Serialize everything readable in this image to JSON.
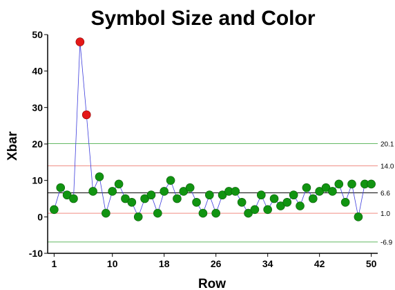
{
  "chart_data": {
    "type": "scatter",
    "title": "Symbol Size and Color",
    "xlabel": "Row",
    "ylabel": "Xbar",
    "xlim": [
      0,
      51
    ],
    "ylim": [
      -10,
      50
    ],
    "x_ticks": [
      1,
      10,
      18,
      26,
      34,
      42,
      50
    ],
    "y_ticks": [
      -10,
      0,
      10,
      20,
      30,
      40,
      50
    ],
    "grid": false,
    "legend": "none",
    "reference_lines": [
      {
        "value": 20.1,
        "label": "20.1",
        "color": "#64b964"
      },
      {
        "value": 14.0,
        "label": "14.0",
        "color": "#f08c82"
      },
      {
        "value": 6.6,
        "label": "6.6",
        "color": "#000000"
      },
      {
        "value": 1.0,
        "label": "1.0",
        "color": "#f08c82"
      },
      {
        "value": -6.9,
        "label": "-6.9",
        "color": "#64b964"
      }
    ],
    "series": [
      {
        "connector_color": "#3c3cdc",
        "point_color": "#119411",
        "outlier_color": "#e41818",
        "x": [
          1,
          2,
          3,
          4,
          5,
          6,
          7,
          8,
          9,
          10,
          11,
          12,
          13,
          14,
          15,
          16,
          17,
          18,
          19,
          20,
          21,
          22,
          23,
          24,
          25,
          26,
          27,
          28,
          29,
          30,
          31,
          32,
          33,
          34,
          35,
          36,
          37,
          38,
          39,
          40,
          41,
          42,
          43,
          44,
          45,
          46,
          47,
          48,
          49,
          50
        ],
        "y": [
          2,
          8,
          6,
          5,
          48,
          28,
          7,
          11,
          1,
          7,
          9,
          5,
          4,
          0,
          5,
          6,
          1,
          7,
          10,
          5,
          7,
          8,
          4,
          1,
          6,
          1,
          6,
          7,
          7,
          4,
          1,
          2,
          6,
          2,
          5,
          3,
          4,
          6,
          3,
          8,
          5,
          7,
          8,
          7,
          9,
          4,
          9,
          0,
          9,
          9
        ],
        "outliers": [
          5,
          6
        ]
      }
    ]
  }
}
